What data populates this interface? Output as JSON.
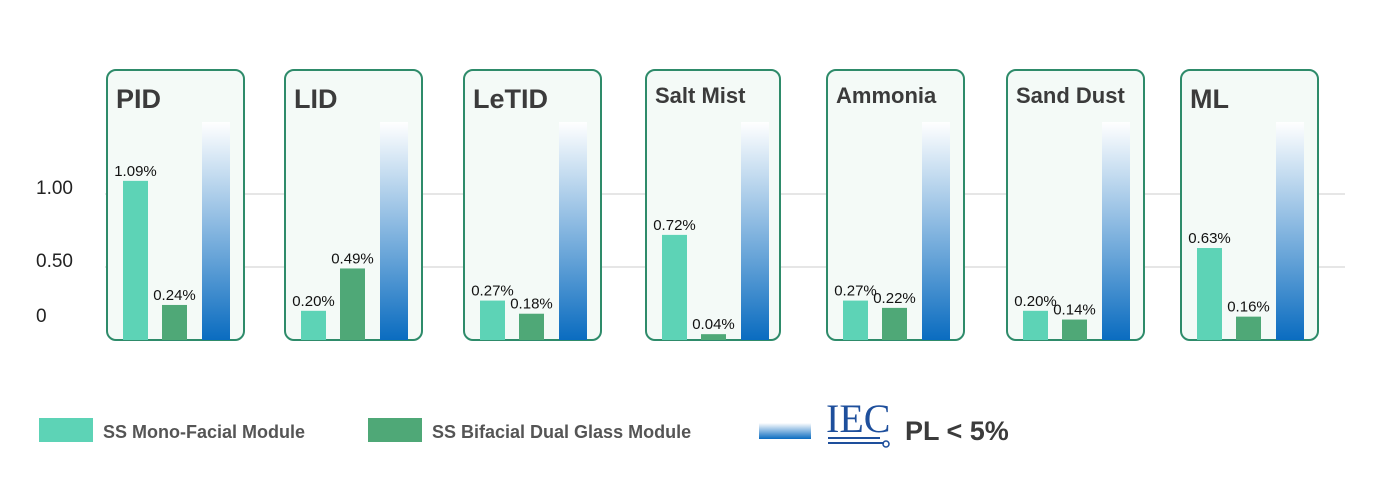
{
  "chart_data": {
    "type": "bar",
    "categories": [
      "PID",
      "LID",
      "LeTID",
      "Salt Mist",
      "Ammonia",
      "Sand Dust",
      "ML"
    ],
    "series": [
      {
        "name": "SS Mono-Facial Module",
        "values": [
          1.09,
          0.2,
          0.27,
          0.72,
          0.27,
          0.2,
          0.63
        ],
        "labels": [
          "1.09%",
          "0.20%",
          "0.27%",
          "0.72%",
          "0.27%",
          "0.20%",
          "0.63%"
        ],
        "color": "#5dd3b6"
      },
      {
        "name": "SS Bifacial Dual Glass Module",
        "values": [
          0.24,
          0.49,
          0.18,
          0.04,
          0.22,
          0.14,
          0.16
        ],
        "labels": [
          "0.24%",
          "0.49%",
          "0.18%",
          "0.04%",
          "0.22%",
          "0.14%",
          "0.16%"
        ],
        "color": "#4fa877"
      }
    ],
    "y_ticks": [
      {
        "value": 0,
        "label": "0"
      },
      {
        "value": 0.5,
        "label": "0.50"
      },
      {
        "value": 1.0,
        "label": "1.00"
      }
    ],
    "ylim": [
      0,
      1.5
    ],
    "grid": true,
    "reference_bar": {
      "gradient_top": "#ffffff",
      "gradient_bottom": "#0a6cc0"
    },
    "legend": {
      "position": "bottom",
      "items": [
        {
          "label": "SS Mono-Facial Module",
          "color": "#5dd3b6"
        },
        {
          "label": "SS Bifacial Dual Glass Module",
          "color": "#4fa877"
        }
      ],
      "iec_logo_text": "IEC",
      "threshold_label": "PL < 5%"
    },
    "colors": {
      "panel_border": "#2e8b6a",
      "panel_fill": "#f4faf7",
      "grid": "#cccccc"
    }
  }
}
